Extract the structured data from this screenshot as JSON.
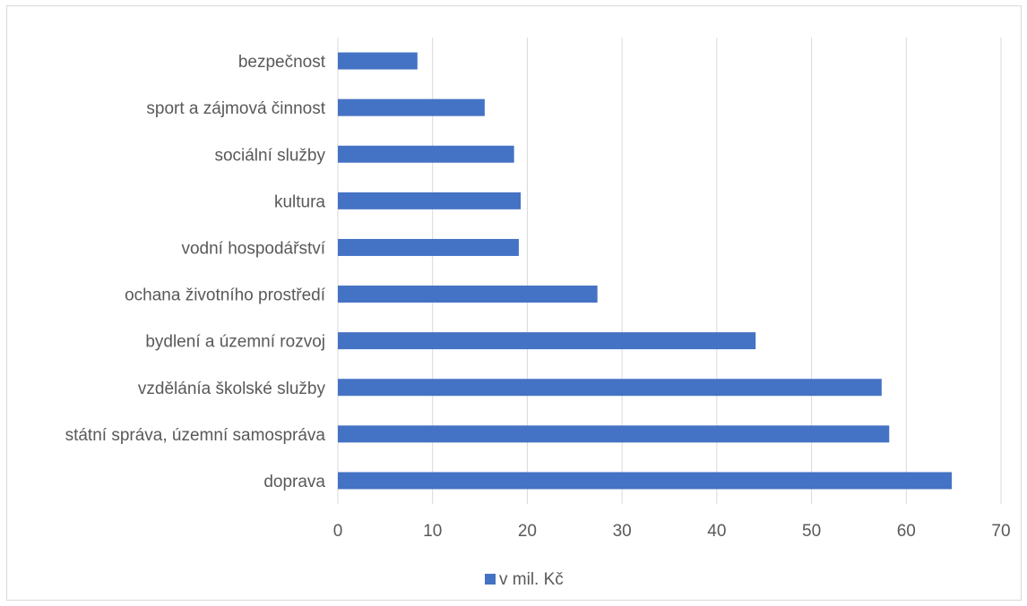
{
  "chart_data": {
    "type": "bar",
    "orientation": "horizontal",
    "categories": [
      "bezpečnost",
      "sport a zájmová činnost",
      "sociální služby",
      "kultura",
      "vodní hospodářství",
      "ochana životního prostředí",
      "bydlení a územní rozvoj",
      "vzdělánía školské služby",
      "státní správa, územní samospráva",
      "doprava"
    ],
    "series": [
      {
        "name": "v mil. Kč",
        "color": "#4472c4",
        "values": [
          8.4,
          15.5,
          18.6,
          19.3,
          19.1,
          27.4,
          44.1,
          57.4,
          58.2,
          64.8
        ]
      }
    ],
    "xlim": [
      0,
      70
    ],
    "x_ticks": [
      "0",
      "10",
      "20",
      "30",
      "40",
      "50",
      "60",
      "70"
    ],
    "grid": "vertical",
    "legend": "bottom",
    "title": "",
    "xlabel": "",
    "ylabel": ""
  }
}
